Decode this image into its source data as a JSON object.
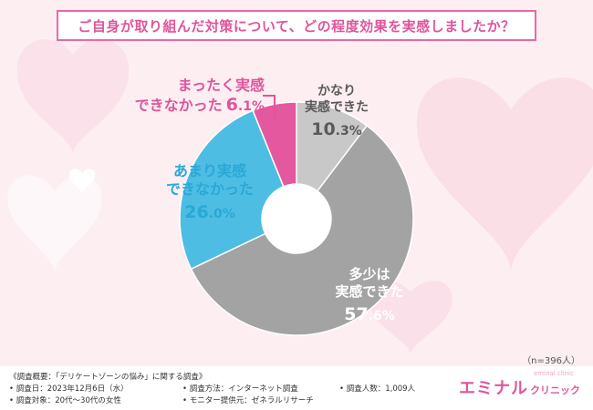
{
  "title": "ご自身が取り組んだ対策について、どの程度効果を実感しましたか？",
  "chart_data": {
    "type": "donut",
    "title": "ご自身が取り組んだ対策について、どの程度効果を実感しましたか？",
    "categories": [
      "かなり実感できた",
      "多少は実感できた",
      "あまり実感できなかった",
      "まったく実感できなかった"
    ],
    "values": [
      10.3,
      57.6,
      26.0,
      6.1
    ],
    "units": "%",
    "colors": [
      "#c8c8c8",
      "#a3a3a3",
      "#4ebde3",
      "#e4589f"
    ],
    "segments": [
      {
        "label_line1": "かなり",
        "label_line2": "実感できた",
        "pct_int": "10",
        "pct_dec": ".3%"
      },
      {
        "label_line1": "多少は",
        "label_line2": "実感できた",
        "pct_int": "57",
        "pct_dec": ".6%"
      },
      {
        "label_line1": "あまり実感",
        "label_line2": "できなかった",
        "pct_int": "26",
        "pct_dec": ".0%"
      },
      {
        "label_line1": "まったく実感",
        "label_line2": "できなかった",
        "pct_int": "6",
        "pct_dec": ".1%"
      }
    ],
    "sample_note": "（n=396人）"
  },
  "footer": {
    "overview": "《調査概要：「デリケートゾーンの悩み」に関する調査》",
    "date": "• 調査日：2023年12月6日（水）",
    "target": "• 調査対象：20代〜30代の女性",
    "method": "• 調査方法：インターネット調査",
    "provider": "• モニター提供元：ゼネラルリサーチ",
    "count": "• 調査人数：1,009人"
  },
  "logo": {
    "main": "エミナル",
    "sub": "クリニック",
    "tiny": "eminal clinic"
  }
}
